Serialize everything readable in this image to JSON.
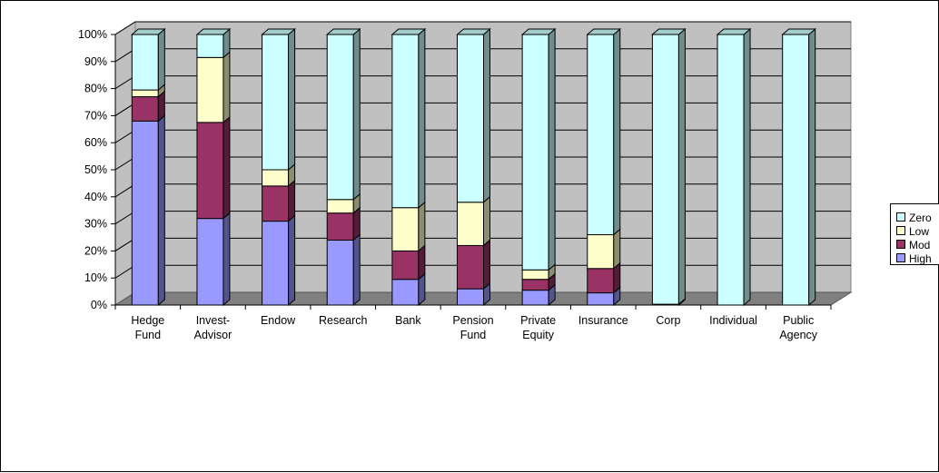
{
  "chart_data": {
    "type": "bar",
    "stacked": true,
    "percent_stacked": true,
    "three_d": true,
    "categories": [
      [
        "Hedge",
        "Fund"
      ],
      [
        "Invest-",
        "Advisor"
      ],
      [
        "Endow"
      ],
      [
        "Research"
      ],
      [
        "Bank"
      ],
      [
        "Pension",
        "Fund"
      ],
      [
        "Private",
        "Equity"
      ],
      [
        "Insurance"
      ],
      [
        "Corp"
      ],
      [
        "Individual"
      ],
      [
        "Public",
        "Agency"
      ]
    ],
    "series": [
      {
        "name": "High",
        "color": "#9999ff",
        "values": [
          68,
          32,
          31,
          24,
          9.5,
          6,
          5.5,
          4.5,
          0,
          0,
          0
        ]
      },
      {
        "name": "Mod",
        "color": "#993366",
        "values": [
          9,
          35.5,
          13,
          10,
          10.5,
          16,
          4,
          9,
          0.3,
          0,
          0
        ]
      },
      {
        "name": "Low",
        "color": "#ffffcc",
        "values": [
          2.5,
          24,
          6,
          5,
          16,
          16,
          3.5,
          12.5,
          0,
          0,
          0
        ]
      },
      {
        "name": "Zero",
        "color": "#ccffff",
        "values": [
          20.5,
          8.5,
          50,
          61,
          64,
          62,
          87,
          74,
          99.7,
          100,
          100
        ]
      }
    ],
    "yticks": [
      "0%",
      "10%",
      "20%",
      "30%",
      "40%",
      "50%",
      "60%",
      "70%",
      "80%",
      "90%",
      "100%"
    ],
    "ylim": [
      0,
      100
    ],
    "grid": true,
    "legend_position": "right",
    "legend_order": [
      "Zero",
      "Low",
      "Mod",
      "High"
    ]
  }
}
